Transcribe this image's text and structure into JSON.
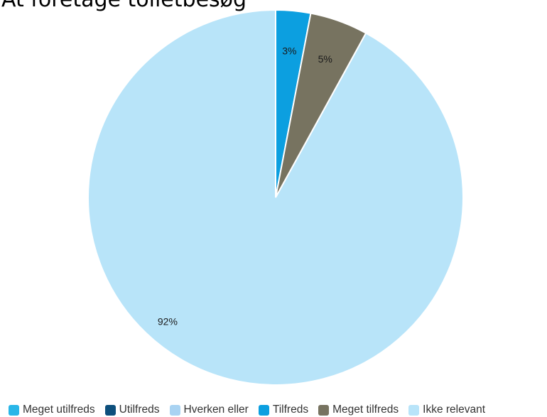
{
  "chart_data": {
    "type": "pie",
    "title": "At foretage toiletbesøg",
    "categories": [
      "Meget utilfreds",
      "Utilfreds",
      "Hverken eller",
      "Tilfreds",
      "Meget tilfreds",
      "Ikke relevant"
    ],
    "values": [
      0,
      0,
      0,
      3,
      5,
      92
    ],
    "value_labels": [
      "",
      "",
      "",
      "3%",
      "5%",
      "92%"
    ],
    "colors": [
      "#29b6e8",
      "#0d4f7c",
      "#a9d3f2",
      "#0c9fe0",
      "#777360",
      "#b8e4f9"
    ],
    "legend_position": "bottom",
    "start_angle": "top, clockwise"
  }
}
